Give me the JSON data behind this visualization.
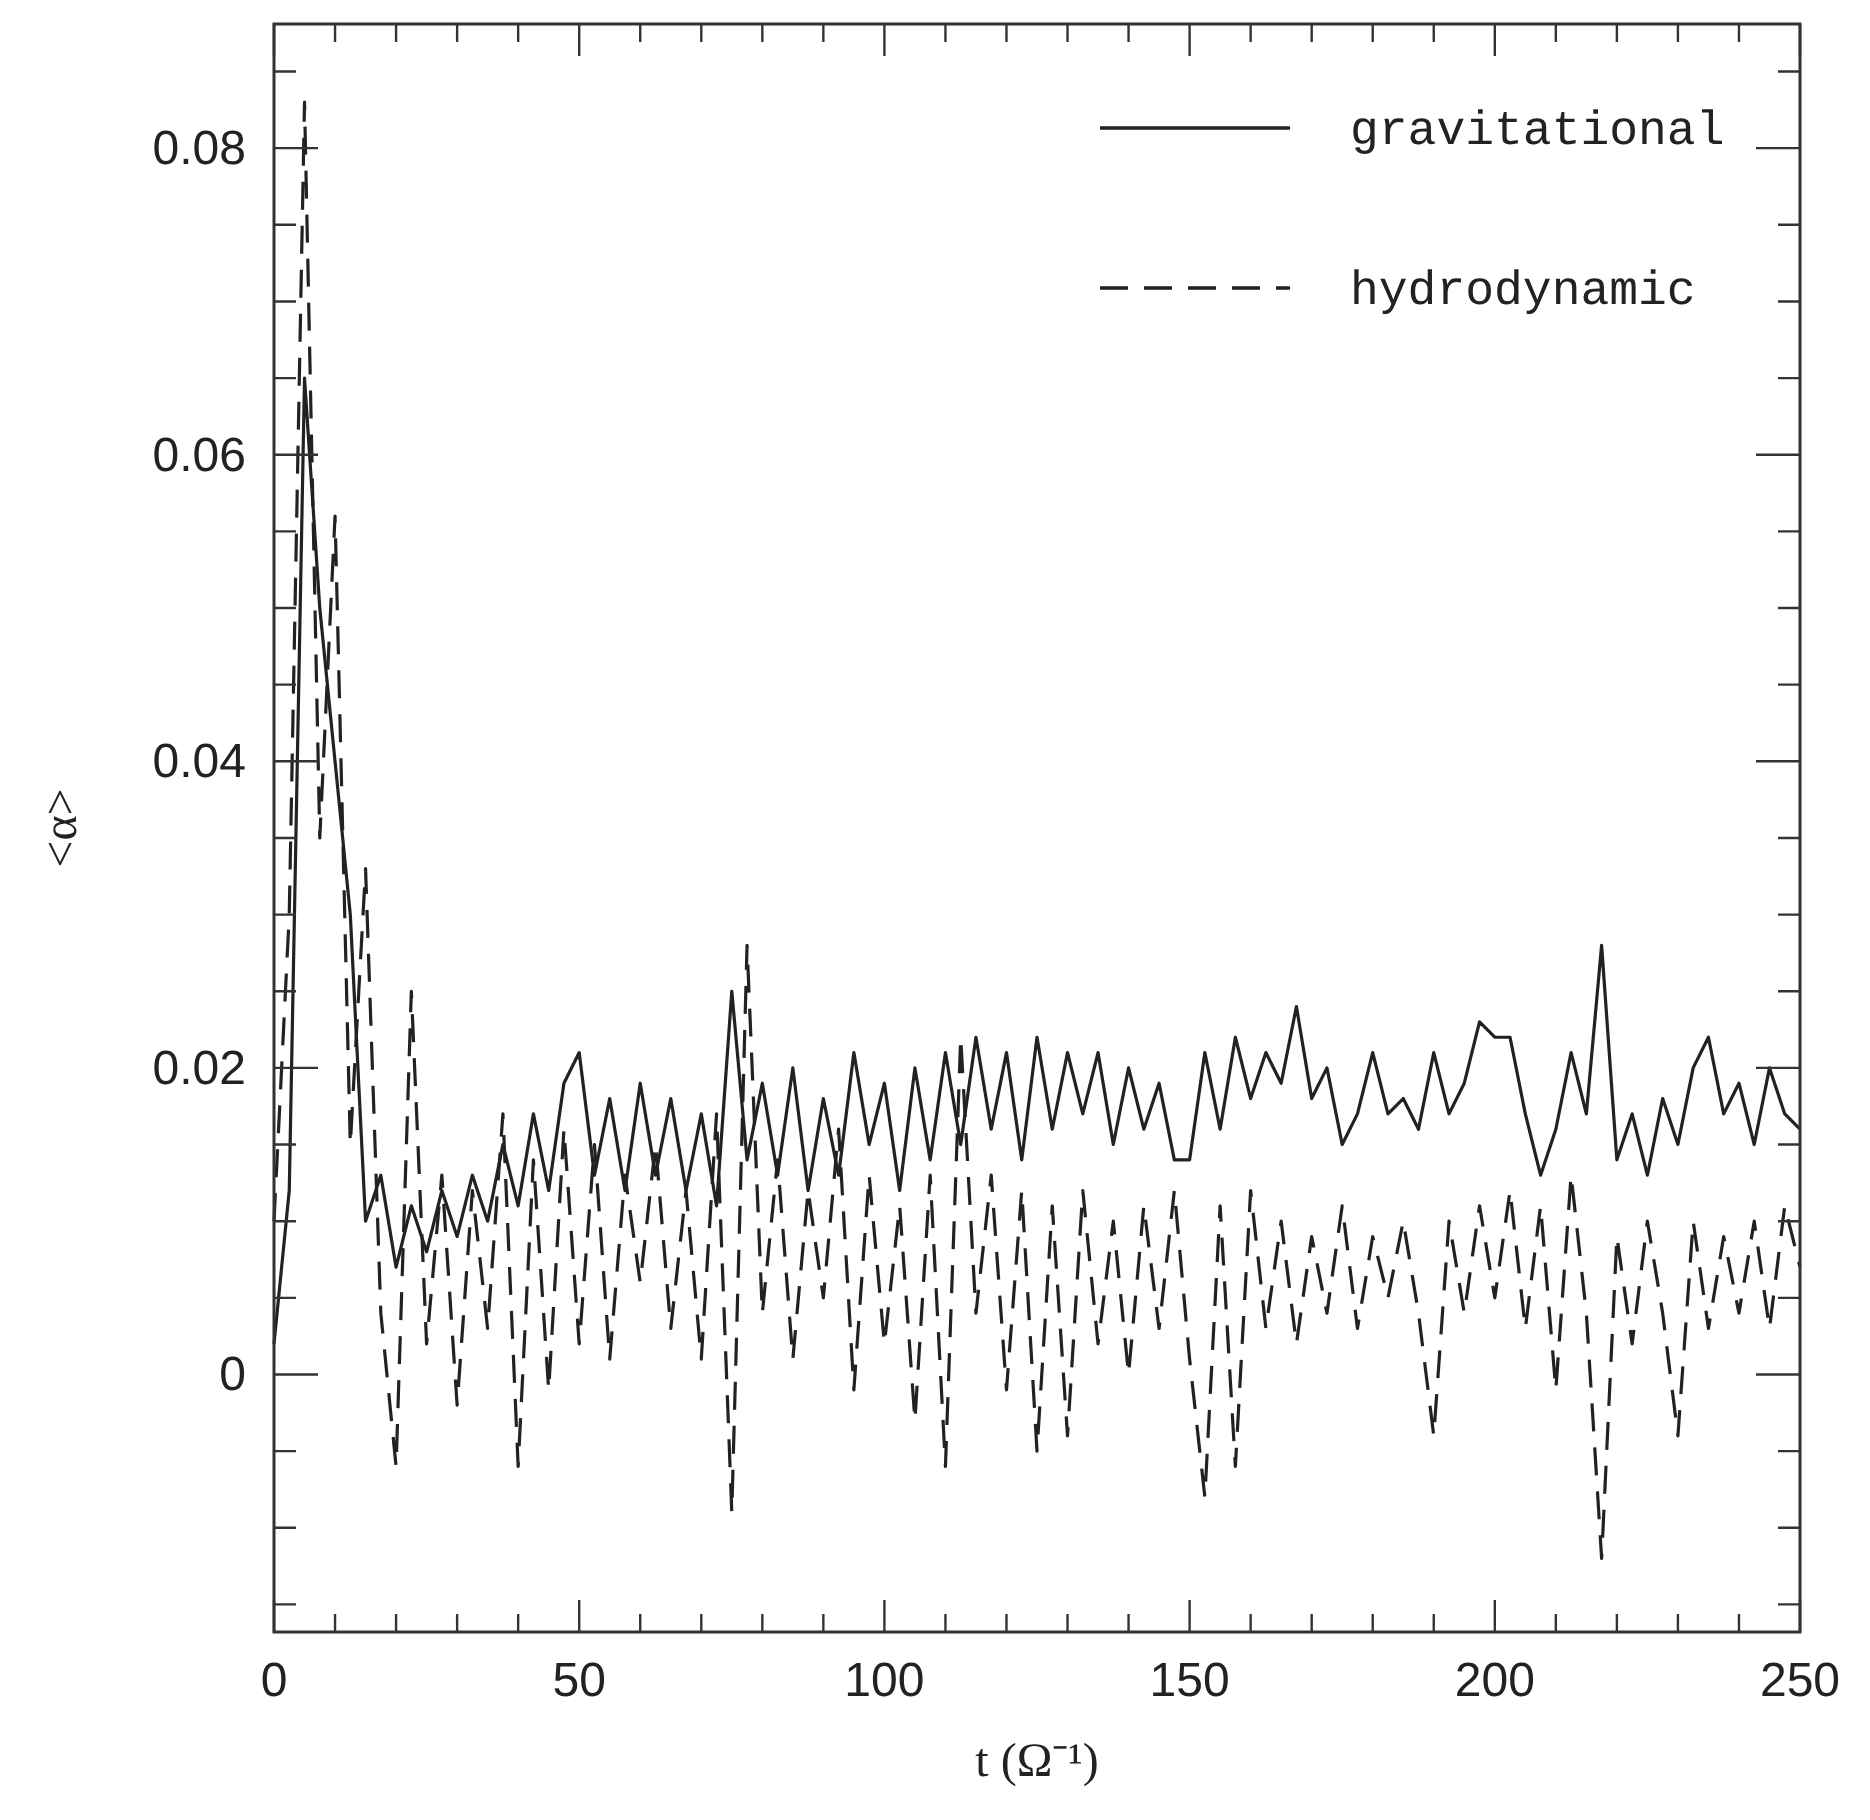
{
  "chart_data": {
    "type": "line",
    "xlabel": "t (Ω⁻¹)",
    "ylabel": "<α>",
    "x": [
      0,
      2.5,
      5,
      7.5,
      10,
      12.5,
      15,
      17.5,
      20,
      22.5,
      25,
      27.5,
      30,
      32.5,
      35,
      37.5,
      40,
      42.5,
      45,
      47.5,
      50,
      52.5,
      55,
      57.5,
      60,
      62.5,
      65,
      67.5,
      70,
      72.5,
      75,
      77.5,
      80,
      82.5,
      85,
      87.5,
      90,
      92.5,
      95,
      97.5,
      100,
      102.5,
      105,
      107.5,
      110,
      112.5,
      115,
      117.5,
      120,
      122.5,
      125,
      127.5,
      130,
      132.5,
      135,
      137.5,
      140,
      142.5,
      145,
      147.5,
      150,
      152.5,
      155,
      157.5,
      160,
      162.5,
      165,
      167.5,
      170,
      172.5,
      175,
      177.5,
      180,
      182.5,
      185,
      187.5,
      190,
      192.5,
      195,
      197.5,
      200,
      202.5,
      205,
      207.5,
      210,
      212.5,
      215,
      217.5,
      220,
      222.5,
      225,
      227.5,
      230,
      232.5,
      235,
      237.5,
      240,
      242.5,
      245,
      247.5,
      250
    ],
    "series": [
      {
        "name": "gravitational",
        "color": "#222222",
        "line_style": "solid",
        "values": [
          0.002,
          0.012,
          0.065,
          0.05,
          0.04,
          0.03,
          0.01,
          0.013,
          0.007,
          0.011,
          0.008,
          0.012,
          0.009,
          0.013,
          0.01,
          0.015,
          0.011,
          0.017,
          0.012,
          0.019,
          0.021,
          0.013,
          0.018,
          0.012,
          0.019,
          0.013,
          0.018,
          0.012,
          0.017,
          0.011,
          0.025,
          0.014,
          0.019,
          0.013,
          0.02,
          0.012,
          0.018,
          0.013,
          0.021,
          0.015,
          0.019,
          0.012,
          0.02,
          0.014,
          0.021,
          0.015,
          0.022,
          0.016,
          0.021,
          0.014,
          0.022,
          0.016,
          0.021,
          0.017,
          0.021,
          0.015,
          0.02,
          0.016,
          0.019,
          0.014,
          0.014,
          0.021,
          0.016,
          0.022,
          0.018,
          0.021,
          0.019,
          0.024,
          0.018,
          0.02,
          0.015,
          0.017,
          0.021,
          0.017,
          0.018,
          0.016,
          0.021,
          0.017,
          0.019,
          0.023,
          0.022,
          0.022,
          0.017,
          0.013,
          0.016,
          0.021,
          0.017,
          0.028,
          0.014,
          0.017,
          0.013,
          0.018,
          0.015,
          0.02,
          0.022,
          0.017,
          0.019,
          0.015,
          0.02,
          0.017,
          0.016
        ]
      },
      {
        "name": "hydrodynamic",
        "color": "#222222",
        "line_style": "dashed",
        "values": [
          0.01,
          0.03,
          0.083,
          0.035,
          0.056,
          0.015,
          0.033,
          0.004,
          -0.006,
          0.025,
          0.002,
          0.013,
          -0.002,
          0.012,
          0.003,
          0.017,
          -0.006,
          0.014,
          -0.001,
          0.016,
          0.002,
          0.015,
          0.001,
          0.013,
          0.006,
          0.015,
          0.003,
          0.012,
          0.001,
          0.017,
          -0.009,
          0.028,
          0.004,
          0.014,
          0.001,
          0.012,
          0.005,
          0.016,
          -0.001,
          0.013,
          0.002,
          0.011,
          -0.003,
          0.013,
          -0.006,
          0.022,
          0.004,
          0.013,
          -0.001,
          0.012,
          -0.005,
          0.011,
          -0.004,
          0.012,
          0.002,
          0.01,
          0,
          0.011,
          0.003,
          0.012,
          0.001,
          -0.008,
          0.011,
          -0.006,
          0.012,
          0.003,
          0.01,
          0.002,
          0.009,
          0.004,
          0.011,
          0.003,
          0.009,
          0.005,
          0.01,
          0.004,
          -0.004,
          0.01,
          0.004,
          0.011,
          0.005,
          0.012,
          0.003,
          0.011,
          -0.001,
          0.013,
          0.004,
          -0.012,
          0.009,
          0.002,
          0.01,
          0.004,
          -0.004,
          0.01,
          0.003,
          0.009,
          0.004,
          0.01,
          0.003,
          0.011,
          0.007
        ]
      }
    ],
    "xlim": [
      0,
      250
    ],
    "xticks": [
      0,
      {
        "value": 10,
        "label": null
      },
      {
        "value": 20,
        "label": null
      },
      {
        "value": 30,
        "label": null
      },
      {
        "value": 40,
        "label": null
      },
      50,
      {
        "value": 60,
        "label": null
      },
      {
        "value": 70,
        "label": null
      },
      {
        "value": 80,
        "label": null
      },
      {
        "value": 90,
        "label": null
      },
      100,
      {
        "value": 110,
        "label": null
      },
      {
        "value": 120,
        "label": null
      },
      {
        "value": 130,
        "label": null
      },
      {
        "value": 140,
        "label": null
      },
      150,
      {
        "value": 160,
        "label": null
      },
      {
        "value": 170,
        "label": null
      },
      {
        "value": 180,
        "label": null
      },
      {
        "value": 190,
        "label": null
      },
      200,
      {
        "value": 210,
        "label": null
      },
      {
        "value": 220,
        "label": null
      },
      {
        "value": 230,
        "label": null
      },
      {
        "value": 240,
        "label": null
      },
      250
    ],
    "ylim": [
      -0.0168,
      0.0881
    ],
    "yticks": [
      {
        "value": -0.015,
        "label": null
      },
      {
        "value": -0.01,
        "label": null
      },
      {
        "value": -0.005,
        "label": null
      },
      0,
      {
        "value": 0.005,
        "label": null
      },
      {
        "value": 0.01,
        "label": null
      },
      {
        "value": 0.015,
        "label": null
      },
      0.02,
      {
        "value": 0.025,
        "label": null
      },
      {
        "value": 0.03,
        "label": null
      },
      {
        "value": 0.035,
        "label": null
      },
      0.04,
      {
        "value": 0.045,
        "label": null
      },
      {
        "value": 0.05,
        "label": null
      },
      {
        "value": 0.055,
        "label": null
      },
      0.06,
      {
        "value": 0.065,
        "label": null
      },
      {
        "value": 0.07,
        "label": null
      },
      {
        "value": 0.075,
        "label": null
      },
      0.08,
      {
        "value": 0.085,
        "label": null
      }
    ],
    "grid": false,
    "legend": "top right"
  }
}
